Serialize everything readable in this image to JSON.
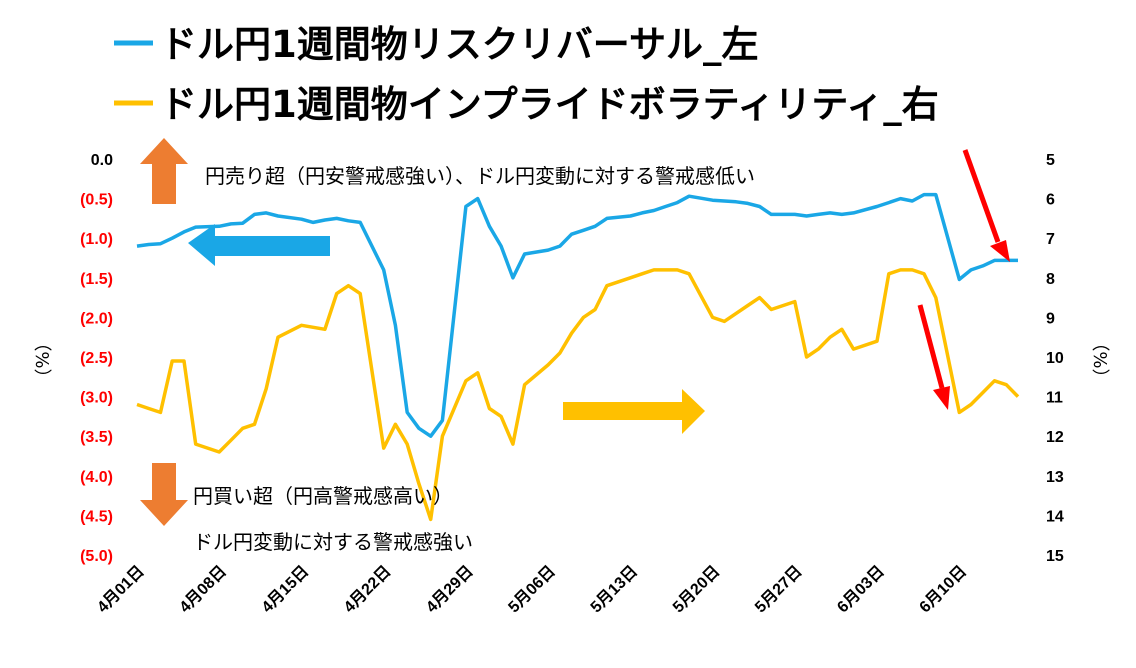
{
  "chart_data": {
    "type": "line",
    "legend": [
      {
        "name": "ドル円1週間物リスクリバーサル_左",
        "color": "#1AA7E6"
      },
      {
        "name": "ドル円1週間物インプライドボラティリティ_右",
        "color": "#FFC000"
      }
    ],
    "left_axis": {
      "unit": "（%）",
      "min": -5.0,
      "max": 0.0,
      "ticks": [
        "0.0",
        "(0.5)",
        "(1.0)",
        "(1.5)",
        "(2.0)",
        "(2.5)",
        "(3.0)",
        "(3.5)",
        "(4.0)",
        "(4.5)",
        "(5.0)"
      ],
      "tick_values": [
        0,
        -0.5,
        -1.0,
        -1.5,
        -2.0,
        -2.5,
        -3.0,
        -3.5,
        -4.0,
        -4.5,
        -5.0
      ],
      "negative_color": "#FF0000",
      "zero_color": "#000000",
      "reversed": false
    },
    "right_axis": {
      "unit": "（%）",
      "min": 5,
      "max": 15,
      "reversed": true,
      "ticks": [
        "5",
        "6",
        "7",
        "8",
        "9",
        "10",
        "11",
        "12",
        "13",
        "14",
        "15"
      ],
      "tick_values": [
        5,
        6,
        7,
        8,
        9,
        10,
        11,
        12,
        13,
        14,
        15
      ]
    },
    "x_axis": {
      "start_date": "2024-04-01",
      "days": 75,
      "ticks": [
        "4月01日",
        "4月08日",
        "4月15日",
        "4月22日",
        "4月29日",
        "5月06日",
        "5月13日",
        "5月20日",
        "5月27日",
        "6月03日",
        "6月10日"
      ]
    },
    "series": [
      {
        "name": "ドル円1週間物リスクリバーサル_左",
        "axis": "left",
        "color": "#1AA7E6",
        "x": [
          "2024-04-01",
          "2024-04-02",
          "2024-04-03",
          "2024-04-04",
          "2024-04-05",
          "2024-04-06",
          "2024-04-08",
          "2024-04-09",
          "2024-04-10",
          "2024-04-11",
          "2024-04-12",
          "2024-04-13",
          "2024-04-15",
          "2024-04-16",
          "2024-04-17",
          "2024-04-18",
          "2024-04-19",
          "2024-04-20",
          "2024-04-22",
          "2024-04-23",
          "2024-04-24",
          "2024-04-25",
          "2024-04-26",
          "2024-04-27",
          "2024-04-29",
          "2024-04-30",
          "2024-05-01",
          "2024-05-02",
          "2024-05-03",
          "2024-05-04",
          "2024-05-06",
          "2024-05-07",
          "2024-05-08",
          "2024-05-09",
          "2024-05-10",
          "2024-05-11",
          "2024-05-13",
          "2024-05-14",
          "2024-05-15",
          "2024-05-16",
          "2024-05-17",
          "2024-05-18",
          "2024-05-20",
          "2024-05-21",
          "2024-05-22",
          "2024-05-23",
          "2024-05-24",
          "2024-05-25",
          "2024-05-27",
          "2024-05-28",
          "2024-05-29",
          "2024-05-30",
          "2024-05-31",
          "2024-06-01",
          "2024-06-03",
          "2024-06-04",
          "2024-06-05",
          "2024-06-06",
          "2024-06-07",
          "2024-06-08",
          "2024-06-10",
          "2024-06-11",
          "2024-06-12",
          "2024-06-13",
          "2024-06-14",
          "2024-06-15"
        ],
        "values": [
          -1.1,
          -1.08,
          -1.07,
          -1.0,
          -0.92,
          -0.86,
          -0.85,
          -0.82,
          -0.81,
          -0.7,
          -0.68,
          -0.72,
          -0.76,
          -0.8,
          -0.77,
          -0.75,
          -0.78,
          -0.8,
          -1.4,
          -2.1,
          -3.2,
          -3.4,
          -3.5,
          -3.3,
          -0.6,
          -0.5,
          -0.85,
          -1.1,
          -1.5,
          -1.2,
          -1.15,
          -1.1,
          -0.95,
          -0.9,
          -0.85,
          -0.75,
          -0.72,
          -0.68,
          -0.65,
          -0.6,
          -0.55,
          -0.47,
          -0.52,
          -0.53,
          -0.54,
          -0.56,
          -0.6,
          -0.7,
          -0.7,
          -0.72,
          -0.7,
          -0.68,
          -0.7,
          -0.68,
          -0.6,
          -0.55,
          -0.5,
          -0.53,
          -0.45,
          -0.45,
          -1.52,
          -1.4,
          -1.35,
          -1.28,
          -1.28,
          -1.28
        ]
      },
      {
        "name": "ドル円1週間物インプライドボラティリティ_右",
        "axis": "right",
        "color": "#FFC000",
        "x": [
          "2024-04-01",
          "2024-04-02",
          "2024-04-03",
          "2024-04-04",
          "2024-04-05",
          "2024-04-06",
          "2024-04-08",
          "2024-04-09",
          "2024-04-10",
          "2024-04-11",
          "2024-04-12",
          "2024-04-13",
          "2024-04-15",
          "2024-04-16",
          "2024-04-17",
          "2024-04-18",
          "2024-04-19",
          "2024-04-20",
          "2024-04-22",
          "2024-04-23",
          "2024-04-24",
          "2024-04-25",
          "2024-04-26",
          "2024-04-27",
          "2024-04-29",
          "2024-04-30",
          "2024-05-01",
          "2024-05-02",
          "2024-05-03",
          "2024-05-04",
          "2024-05-06",
          "2024-05-07",
          "2024-05-08",
          "2024-05-09",
          "2024-05-10",
          "2024-05-11",
          "2024-05-13",
          "2024-05-14",
          "2024-05-15",
          "2024-05-16",
          "2024-05-17",
          "2024-05-18",
          "2024-05-20",
          "2024-05-21",
          "2024-05-22",
          "2024-05-23",
          "2024-05-24",
          "2024-05-25",
          "2024-05-27",
          "2024-05-28",
          "2024-05-29",
          "2024-05-30",
          "2024-05-31",
          "2024-06-01",
          "2024-06-03",
          "2024-06-04",
          "2024-06-05",
          "2024-06-06",
          "2024-06-07",
          "2024-06-08",
          "2024-06-10",
          "2024-06-11",
          "2024-06-12",
          "2024-06-13",
          "2024-06-14",
          "2024-06-15"
        ],
        "values": [
          11.2,
          11.3,
          11.4,
          10.1,
          10.1,
          12.2,
          12.4,
          12.1,
          11.8,
          11.7,
          10.8,
          9.5,
          9.2,
          9.25,
          9.3,
          8.4,
          8.2,
          8.4,
          12.3,
          11.7,
          12.2,
          13.2,
          14.1,
          12.0,
          10.6,
          10.4,
          11.3,
          11.5,
          12.2,
          10.7,
          10.2,
          9.9,
          9.4,
          9.0,
          8.8,
          8.2,
          8.0,
          7.9,
          7.8,
          7.8,
          7.8,
          7.9,
          9.0,
          9.1,
          8.9,
          8.7,
          8.5,
          8.8,
          8.6,
          10.0,
          9.8,
          9.5,
          9.3,
          9.8,
          9.6,
          7.9,
          7.8,
          7.8,
          7.9,
          8.5,
          11.4,
          11.2,
          10.9,
          10.6,
          10.7,
          11.0
        ]
      }
    ],
    "annotations": {
      "top_text": "円売り超（円安警戒感強い）、ドル円変動に対する警戒感低い",
      "bottom_text_1": "円買い超（円高警戒感高い）",
      "bottom_text_2": "ドル円変動に対する警戒感強い"
    },
    "arrow_colors": {
      "up_down": "#ED7D31",
      "blue_left": "#1AA7E6",
      "yellow_right": "#FFC000",
      "red": "#FF0000"
    }
  }
}
